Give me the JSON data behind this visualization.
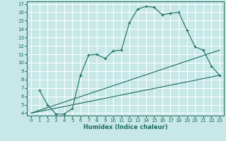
{
  "xlabel": "Humidex (Indice chaleur)",
  "background_color": "#c8e8e8",
  "grid_color": "#ffffff",
  "line_color": "#1a6b5a",
  "xlim": [
    -0.5,
    23.5
  ],
  "ylim": [
    3.7,
    17.3
  ],
  "xticks": [
    0,
    1,
    2,
    3,
    4,
    5,
    6,
    7,
    8,
    9,
    10,
    11,
    12,
    13,
    14,
    15,
    16,
    17,
    18,
    19,
    20,
    21,
    22,
    23
  ],
  "yticks": [
    4,
    5,
    6,
    7,
    8,
    9,
    10,
    11,
    12,
    13,
    14,
    15,
    16,
    17
  ],
  "series1_x": [
    1,
    2,
    3,
    4,
    5,
    6,
    7,
    8,
    9,
    10,
    11,
    12,
    13,
    14,
    15,
    16,
    17,
    18,
    19,
    20,
    21,
    22,
    23
  ],
  "series1_y": [
    6.7,
    5.0,
    3.9,
    3.9,
    4.5,
    8.5,
    10.9,
    11.0,
    10.5,
    11.4,
    11.5,
    14.8,
    16.4,
    16.7,
    16.6,
    15.7,
    15.9,
    16.0,
    13.9,
    11.9,
    11.5,
    9.6,
    8.5
  ],
  "series2_x": [
    0,
    23
  ],
  "series2_y": [
    4.0,
    11.5
  ],
  "series3_x": [
    0,
    23
  ],
  "series3_y": [
    4.0,
    8.5
  ]
}
